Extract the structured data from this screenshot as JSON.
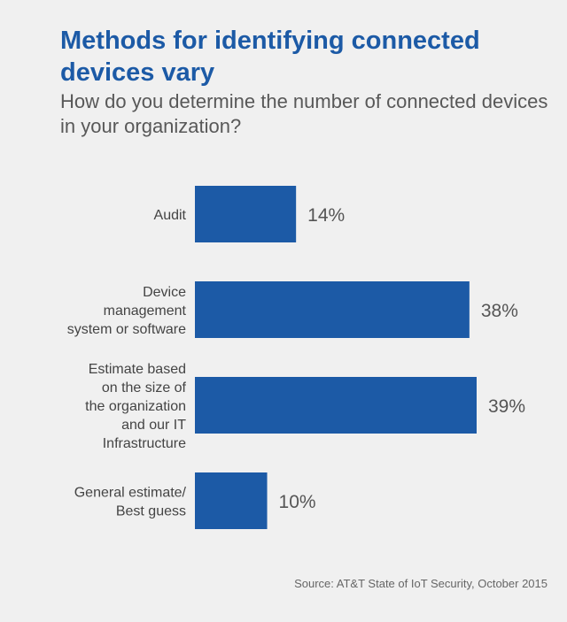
{
  "title": "Methods for identifying connected devices vary",
  "subtitle": "How do you determine the number of connected devices in your organization?",
  "source": "Source: AT&T State of IoT Security, October 2015",
  "chart_data": {
    "type": "bar",
    "orientation": "horizontal",
    "categories": [
      [
        "Audit"
      ],
      [
        "Device",
        "management",
        "system or software"
      ],
      [
        "Estimate based",
        "on the size of",
        "the organization",
        "and our IT",
        "Infrastructure"
      ],
      [
        "General estimate/",
        "Best guess"
      ]
    ],
    "values": [
      14,
      38,
      39,
      10
    ],
    "value_labels": [
      "14%",
      "38%",
      "39%",
      "10%"
    ],
    "unit": "%",
    "xlim": [
      0,
      39
    ],
    "bar_color": "#1c5aa6",
    "grid": false,
    "legend": "none"
  }
}
